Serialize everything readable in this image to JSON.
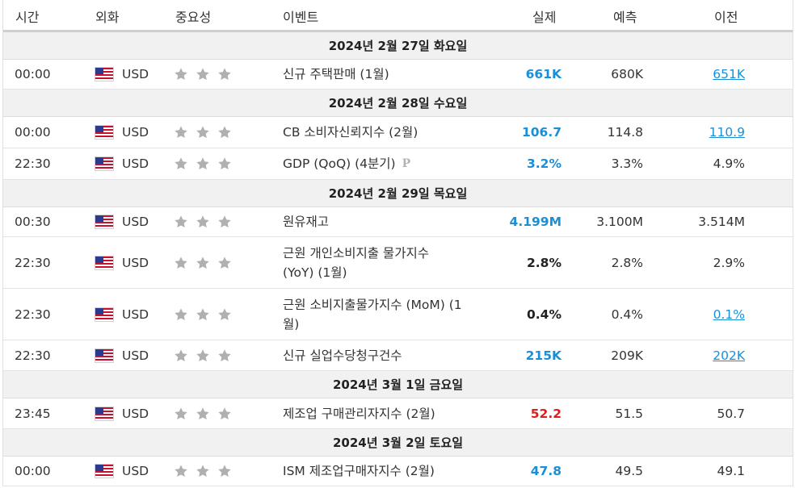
{
  "headers": {
    "time": "시간",
    "currency": "외화",
    "importance": "중요성",
    "event": "이벤트",
    "actual": "실제",
    "forecast": "예측",
    "previous": "이전"
  },
  "colors": {
    "actual_up": "#1a8fd8",
    "actual_down": "#e01c1c",
    "link": "#1a8fd8",
    "star": "#b0b0b0",
    "date_bg": "#f1f1f1"
  },
  "dates": [
    "2024년 2월 27일 화요일",
    "2024년 2월 28일 수요일",
    "2024년 2월 29일 목요일",
    "2024년 3월 1일 금요일",
    "2024년 3월 2일 토요일"
  ],
  "events": [
    {
      "time": "00:00",
      "currency": "USD",
      "event": "신규 주택판매 (1월)",
      "actual": "661K",
      "forecast": "680K",
      "previous": "651K"
    },
    {
      "time": "00:00",
      "currency": "USD",
      "event": "CB 소비자신뢰지수 (2월)",
      "actual": "106.7",
      "forecast": "114.8",
      "previous": "110.9"
    },
    {
      "time": "22:30",
      "currency": "USD",
      "event": "GDP (QoQ) (4분기)",
      "preliminary_mark": "P",
      "actual": "3.2%",
      "forecast": "3.3%",
      "previous": "4.9%"
    },
    {
      "time": "00:30",
      "currency": "USD",
      "event": "원유재고",
      "actual": "4.199M",
      "forecast": "3.100M",
      "previous": "3.514M"
    },
    {
      "time": "22:30",
      "currency": "USD",
      "event_line1": "근원 개인소비지출 물가지수",
      "event_line2": "(YoY) (1월)",
      "actual": "2.8%",
      "forecast": "2.8%",
      "previous": "2.9%"
    },
    {
      "time": "22:30",
      "currency": "USD",
      "event_line1": "근원 소비지출물가지수 (MoM) (1",
      "event_line2": "월)",
      "actual": "0.4%",
      "forecast": "0.4%",
      "previous": "0.1%"
    },
    {
      "time": "22:30",
      "currency": "USD",
      "event": "신규 실업수당청구건수",
      "actual": "215K",
      "forecast": "209K",
      "previous": "202K"
    },
    {
      "time": "23:45",
      "currency": "USD",
      "event": "제조업 구매관리자지수 (2월)",
      "actual": "52.2",
      "forecast": "51.5",
      "previous": "50.7"
    },
    {
      "time": "00:00",
      "currency": "USD",
      "event": "ISM 제조업구매자지수 (2월)",
      "actual": "47.8",
      "forecast": "49.5",
      "previous": "49.1"
    }
  ],
  "importance_stars": 3,
  "flag_icon": "us-flag-icon",
  "star_icon": "star-icon"
}
